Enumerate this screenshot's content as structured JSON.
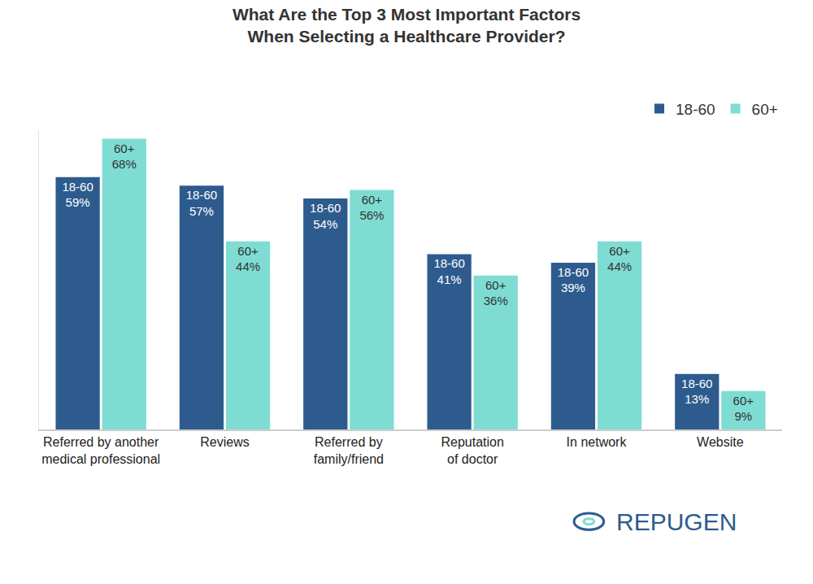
{
  "chart_data": {
    "type": "bar",
    "title": "What Are the Top 3 Most Important Factors When Selecting a Healthcare Provider?",
    "categories": [
      "Referred by another medical professional",
      "Reviews",
      "Referred by family/friend",
      "Reputation of doctor",
      "In network",
      "Website"
    ],
    "series": [
      {
        "name": "18-60",
        "color": "#2e5b8e",
        "values": [
          59,
          57,
          54,
          41,
          39,
          13
        ],
        "value_labels": [
          "59%",
          "57%",
          "54%",
          "41%",
          "39%",
          "13%"
        ]
      },
      {
        "name": "60+",
        "color": "#7edcd3",
        "values": [
          68,
          44,
          56,
          36,
          44,
          9
        ],
        "value_labels": [
          "68%",
          "44%",
          "56%",
          "36%",
          "44%",
          "9%"
        ]
      }
    ],
    "ylim": [
      0,
      70
    ],
    "tick_labels": "x",
    "grid": false,
    "legend": "top right",
    "data_labels": true,
    "annotations": [
      "REPUGEN"
    ]
  }
}
